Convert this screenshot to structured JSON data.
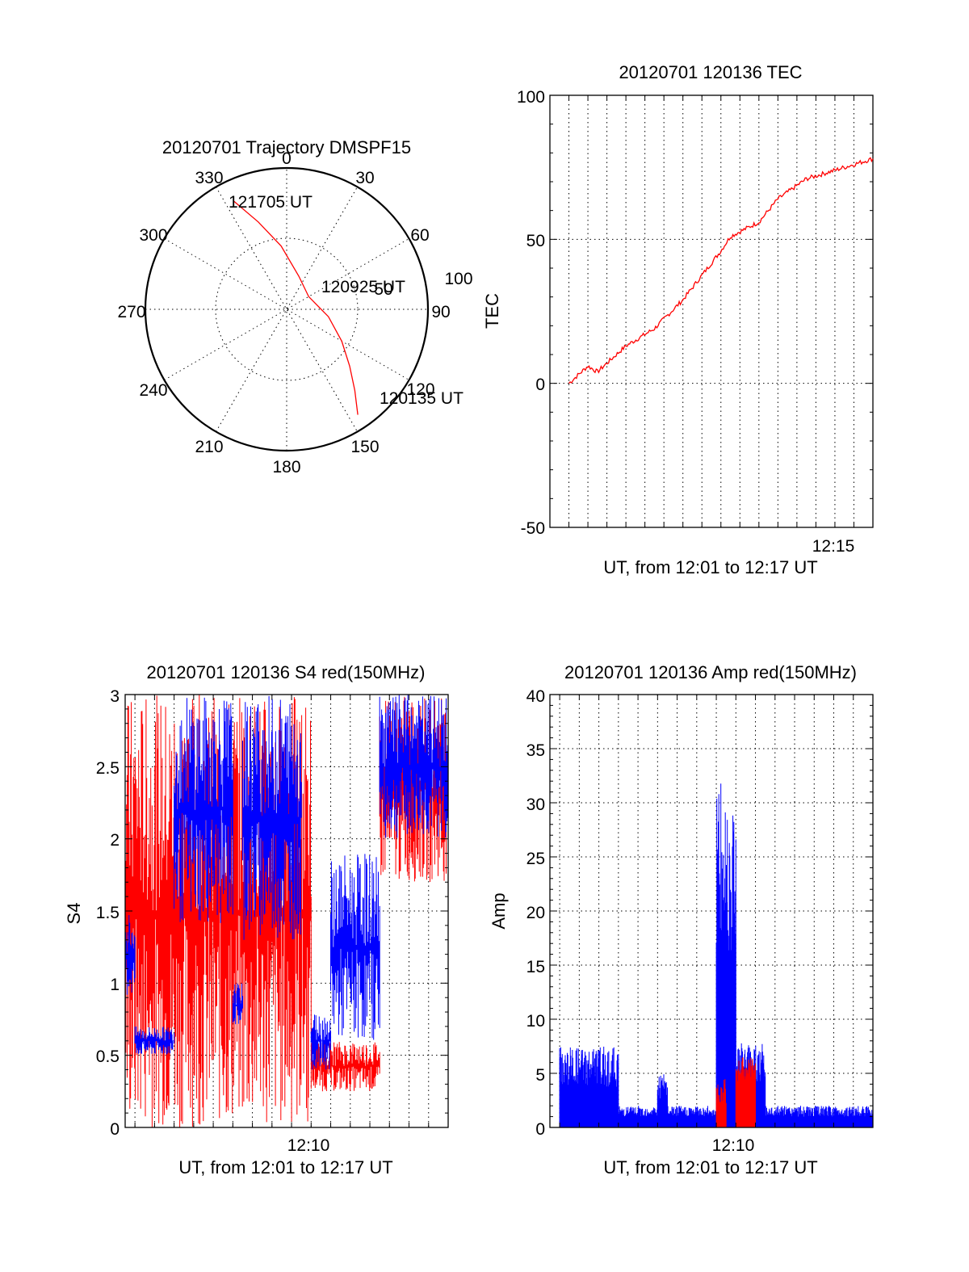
{
  "colors": {
    "red": "#ff0000",
    "blue": "#0000ff",
    "axis": "#000000",
    "background": "#ffffff"
  },
  "chart_data": [
    {
      "type": "polar",
      "title": "20120701 Trajectory DMSPF15",
      "angle_labels": [
        "0",
        "30",
        "60",
        "90",
        "120",
        "150",
        "180",
        "210",
        "240",
        "270",
        "300",
        "330"
      ],
      "radial_labels": [
        "50",
        "100"
      ],
      "radial_range": [
        0,
        100
      ],
      "grid": true,
      "annotations": [
        "121705 UT",
        "120925 UT",
        "120135 UT"
      ],
      "series": [
        {
          "color": "#ff0000",
          "points": [
            {
              "azimuth": 146,
              "radius": 90
            },
            {
              "azimuth": 140,
              "radius": 75
            },
            {
              "azimuth": 132,
              "radius": 60
            },
            {
              "azimuth": 120,
              "radius": 45
            },
            {
              "azimuth": 100,
              "radius": 30
            },
            {
              "azimuth": 60,
              "radius": 18
            },
            {
              "azimuth": 20,
              "radius": 25
            },
            {
              "azimuth": 355,
              "radius": 45
            },
            {
              "azimuth": 342,
              "radius": 65
            },
            {
              "azimuth": 334,
              "radius": 85
            }
          ]
        }
      ]
    },
    {
      "type": "line",
      "title": "20120701 120136 TEC",
      "xlabel": "UT, from 12:01 to 12:17 UT",
      "ylabel": "TEC",
      "x_tick_labels": [
        "12:15"
      ],
      "y_tick_labels": [
        "-50",
        "0",
        "50",
        "100"
      ],
      "xlim": [
        "12:00",
        "12:17"
      ],
      "ylim": [
        -50,
        100
      ],
      "grid": true,
      "series": [
        {
          "color": "#ff0000",
          "x": [
            "12:01:00",
            "12:02:00",
            "12:02:30",
            "12:04:00",
            "12:05:30",
            "12:07:00",
            "12:09:00",
            "12:09:30",
            "12:11:00",
            "12:12:00",
            "12:13:30",
            "12:15:00",
            "12:16:00",
            "12:17:00"
          ],
          "y": [
            0,
            6,
            4,
            13,
            19,
            29,
            46,
            51,
            56,
            64,
            71,
            74,
            76,
            78
          ]
        }
      ]
    },
    {
      "type": "line",
      "title": "20120701 120136 S4 red(150MHz)",
      "xlabel": "UT, from 12:01 to 12:17 UT",
      "ylabel": "S4",
      "x_tick_labels": [
        "12:10"
      ],
      "y_tick_labels": [
        "0",
        "0.5",
        "1",
        "1.5",
        "2",
        "2.5",
        "3"
      ],
      "xlim": [
        "12:00:30",
        "12:17"
      ],
      "ylim": [
        0,
        3
      ],
      "grid": true,
      "series": [
        {
          "color": "#ff0000",
          "segments": [
            {
              "x_range": [
                "12:00:30",
                "12:10:00"
              ],
              "low": 0,
              "high": 3,
              "description_free": true
            },
            {
              "x_range": [
                "12:10:00",
                "12:13:30"
              ],
              "low": 0.25,
              "high": 0.6
            },
            {
              "x_range": [
                "12:13:30",
                "12:17:00"
              ],
              "low": 1.7,
              "high": 3
            }
          ]
        },
        {
          "color": "#0000ff",
          "segments": [
            {
              "x_range": [
                "12:00:30",
                "12:01:00"
              ],
              "low": 0.9,
              "high": 1.5
            },
            {
              "x_range": [
                "12:01:00",
                "12:03:00"
              ],
              "low": 0.5,
              "high": 0.7
            },
            {
              "x_range": [
                "12:03:00",
                "12:06:00"
              ],
              "low": 1.4,
              "high": 3
            },
            {
              "x_range": [
                "12:06:00",
                "12:06:30"
              ],
              "low": 0.7,
              "high": 1.0
            },
            {
              "x_range": [
                "12:06:30",
                "12:09:30"
              ],
              "low": 1.3,
              "high": 3
            },
            {
              "x_range": [
                "12:10:00",
                "12:11:00"
              ],
              "low": 0.4,
              "high": 0.8
            },
            {
              "x_range": [
                "12:11:00",
                "12:13:30"
              ],
              "low": 0.6,
              "high": 1.9
            },
            {
              "x_range": [
                "12:13:30",
                "12:17:00"
              ],
              "low": 2.0,
              "high": 3
            }
          ]
        }
      ]
    },
    {
      "type": "line",
      "title": "20120701 120136 Amp red(150MHz)",
      "xlabel": "UT, from 12:01 to 12:17 UT",
      "ylabel": "Amp",
      "x_tick_labels": [
        "12:10"
      ],
      "y_tick_labels": [
        "0",
        "5",
        "10",
        "15",
        "20",
        "25",
        "30",
        "35",
        "40"
      ],
      "xlim": [
        "12:00:30",
        "12:17"
      ],
      "ylim": [
        0,
        40
      ],
      "grid": true,
      "series": [
        {
          "color": "#0000ff",
          "segments": [
            {
              "x_range": [
                "12:01:00",
                "12:04:00"
              ],
              "low": 0,
              "high": 7.5
            },
            {
              "x_range": [
                "12:04:00",
                "12:06:00"
              ],
              "low": 0,
              "high": 2
            },
            {
              "x_range": [
                "12:06:00",
                "12:06:30"
              ],
              "low": 0,
              "high": 5
            },
            {
              "x_range": [
                "12:06:30",
                "12:09:00"
              ],
              "low": 0,
              "high": 2
            },
            {
              "x_range": [
                "12:09:00",
                "12:10:00"
              ],
              "low": 0,
              "high": 32
            },
            {
              "x_range": [
                "12:10:00",
                "12:11:30"
              ],
              "low": 0,
              "high": 8
            },
            {
              "x_range": [
                "12:11:30",
                "12:17:00"
              ],
              "low": 0,
              "high": 2
            }
          ]
        },
        {
          "color": "#ff0000",
          "segments": [
            {
              "x_range": [
                "12:09:00",
                "12:09:30"
              ],
              "low": 0,
              "high": 4.5
            },
            {
              "x_range": [
                "12:10:00",
                "12:11:00"
              ],
              "low": 2,
              "high": 6.5
            }
          ]
        }
      ]
    }
  ]
}
